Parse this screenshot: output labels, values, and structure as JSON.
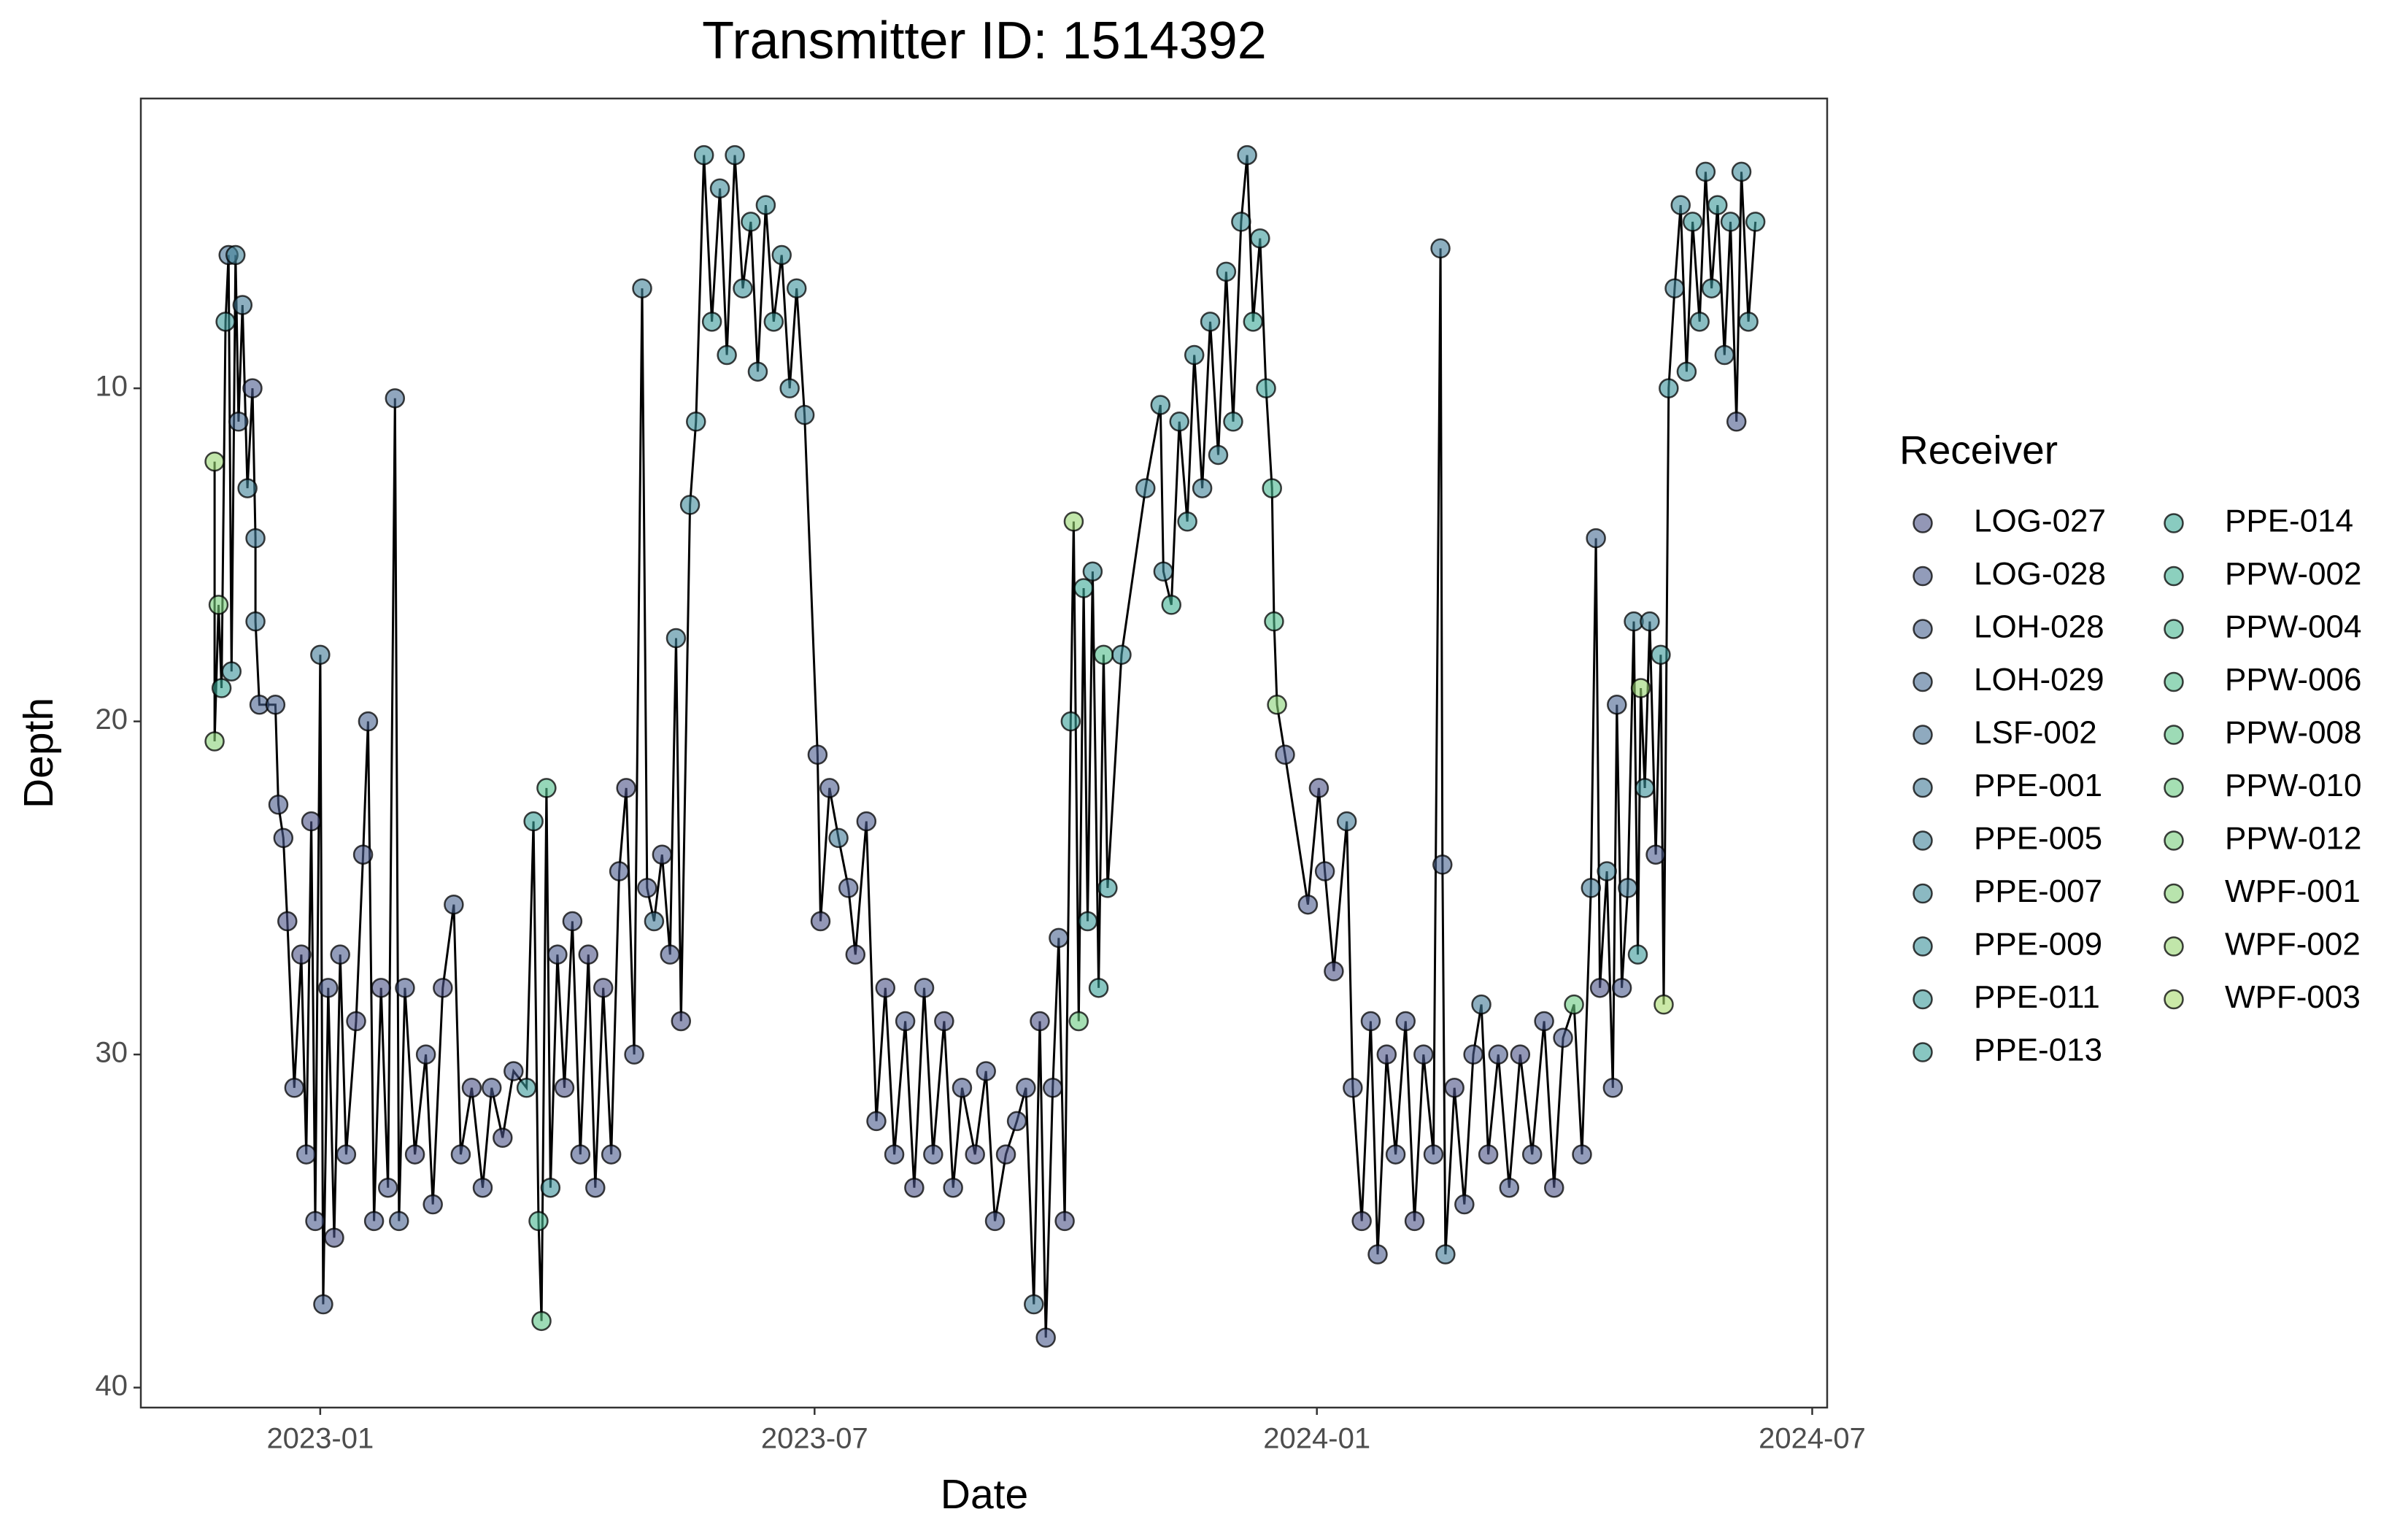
{
  "chart_data": {
    "type": "scatter",
    "title": "Transmitter ID: 1514392",
    "x_label": "Date",
    "y_label": "Depth",
    "legend_title": "Receiver",
    "connect_points": true,
    "line_color": "#000000",
    "y_reversed": true,
    "grid": false,
    "legend": "right",
    "xlim": [
      2022.82,
      2024.512
    ],
    "xticks": [
      {
        "value": 2023.0,
        "label": "2023-01"
      },
      {
        "value": 2023.496,
        "label": "2023-07"
      },
      {
        "value": 2024.0,
        "label": "2024-01"
      },
      {
        "value": 2024.497,
        "label": "2024-07"
      }
    ],
    "ylim": [
      1.3,
      40.6
    ],
    "yticks": [
      10,
      20,
      30,
      40
    ],
    "series": [
      {
        "name": "LOG-027",
        "color": "#4b5286"
      },
      {
        "name": "LOG-028",
        "color": "#4a5a8c"
      },
      {
        "name": "LOH-028",
        "color": "#48628f"
      },
      {
        "name": "LOH-029",
        "color": "#466a92"
      },
      {
        "name": "LSF-002",
        "color": "#447294"
      },
      {
        "name": "PPE-001",
        "color": "#417a96"
      },
      {
        "name": "PPE-005",
        "color": "#3f8298"
      },
      {
        "name": "PPE-007",
        "color": "#3d8a99"
      },
      {
        "name": "PPE-009",
        "color": "#3b9199"
      },
      {
        "name": "PPE-011",
        "color": "#3a9999"
      },
      {
        "name": "PPE-013",
        "color": "#39a098"
      },
      {
        "name": "PPE-014",
        "color": "#3ba896"
      },
      {
        "name": "PPW-002",
        "color": "#3fb093"
      },
      {
        "name": "PPW-004",
        "color": "#46b68f"
      },
      {
        "name": "PPW-006",
        "color": "#50bd8b"
      },
      {
        "name": "PPW-008",
        "color": "#5cc385"
      },
      {
        "name": "PPW-010",
        "color": "#69c980"
      },
      {
        "name": "PPW-012",
        "color": "#78ce7b"
      },
      {
        "name": "WPF-001",
        "color": "#88d276"
      },
      {
        "name": "WPF-002",
        "color": "#98d672"
      },
      {
        "name": "WPF-003",
        "color": "#a8da6e"
      }
    ],
    "x": [
      2022.894,
      2022.894,
      2022.898,
      2022.901,
      2022.905,
      2022.908,
      2022.911,
      2022.915,
      2022.918,
      2022.922,
      2022.927,
      2022.932,
      2022.935,
      2022.935,
      2022.939,
      2022.955,
      2022.958,
      2022.963,
      2022.967,
      2022.974,
      2022.981,
      2022.986,
      2022.991,
      2022.995,
      2023.0,
      2023.003,
      2023.008,
      2023.014,
      2023.02,
      2023.026,
      2023.036,
      2023.043,
      2023.048,
      2023.054,
      2023.061,
      2023.068,
      2023.075,
      2023.079,
      2023.085,
      2023.095,
      2023.106,
      2023.113,
      2023.123,
      2023.134,
      2023.141,
      2023.152,
      2023.163,
      2023.172,
      2023.183,
      2023.194,
      2023.207,
      2023.214,
      2023.219,
      2023.222,
      2023.227,
      2023.231,
      2023.238,
      2023.245,
      2023.253,
      2023.261,
      2023.269,
      2023.276,
      2023.284,
      2023.292,
      2023.3,
      2023.307,
      2023.315,
      2023.323,
      2023.328,
      2023.335,
      2023.343,
      2023.351,
      2023.357,
      2023.362,
      2023.371,
      2023.377,
      2023.385,
      2023.393,
      2023.401,
      2023.408,
      2023.416,
      2023.424,
      2023.432,
      2023.439,
      2023.447,
      2023.455,
      2023.463,
      2023.471,
      2023.478,
      2023.486,
      2023.499,
      2023.502,
      2023.511,
      2023.52,
      2023.53,
      2023.537,
      2023.548,
      2023.558,
      2023.567,
      2023.576,
      2023.587,
      2023.596,
      2023.606,
      2023.615,
      2023.626,
      2023.635,
      2023.644,
      2023.657,
      2023.668,
      2023.677,
      2023.688,
      2023.699,
      2023.708,
      2023.716,
      2023.722,
      2023.728,
      2023.735,
      2023.741,
      2023.747,
      2023.753,
      2023.756,
      2023.761,
      2023.766,
      2023.77,
      2023.775,
      2023.781,
      2023.786,
      2023.79,
      2023.804,
      2023.828,
      2023.843,
      2023.846,
      2023.854,
      2023.862,
      2023.87,
      2023.877,
      2023.885,
      2023.893,
      2023.901,
      2023.909,
      2023.916,
      2023.924,
      2023.93,
      2023.936,
      2023.943,
      2023.949,
      2023.955,
      2023.957,
      2023.96,
      2023.968,
      2023.991,
      2024.002,
      2024.008,
      2024.017,
      2024.03,
      2024.036,
      2024.045,
      2024.054,
      2024.061,
      2024.07,
      2024.079,
      2024.089,
      2024.098,
      2024.107,
      2024.117,
      2024.124,
      2024.126,
      2024.129,
      2024.138,
      2024.148,
      2024.157,
      2024.165,
      2024.172,
      2024.182,
      2024.193,
      2024.204,
      2024.216,
      2024.228,
      2024.238,
      2024.247,
      2024.258,
      2024.266,
      2024.275,
      2024.28,
      2024.284,
      2024.291,
      2024.297,
      2024.301,
      2024.306,
      2024.312,
      2024.318,
      2024.322,
      2024.325,
      2024.329,
      2024.334,
      2024.34,
      2024.345,
      2024.348,
      2024.353,
      2024.359,
      2024.365,
      2024.371,
      2024.377,
      2024.384,
      2024.39,
      2024.396,
      2024.402,
      2024.409,
      2024.415,
      2024.421,
      2024.426,
      2024.433,
      2024.44
    ],
    "values": [
      12.2,
      20.6,
      16.5,
      19,
      8,
      6,
      18.5,
      6,
      11,
      7.5,
      13,
      10,
      14.5,
      17,
      19.5,
      19.5,
      22.5,
      23.5,
      26,
      31,
      27,
      33,
      23,
      35,
      18,
      37.5,
      28,
      35.5,
      27,
      33,
      29,
      24,
      20,
      35,
      28,
      34,
      10.3,
      35,
      28,
      33,
      30,
      34.5,
      28,
      25.5,
      33,
      31,
      34,
      31,
      32.5,
      30.5,
      31,
      23,
      35,
      38,
      22,
      34,
      27,
      31,
      26,
      33,
      27,
      34,
      28,
      33,
      24.5,
      22,
      30,
      7,
      25,
      26,
      24,
      27,
      17.5,
      29,
      13.5,
      11,
      3,
      8,
      4,
      9,
      3,
      7,
      5,
      9.5,
      4.5,
      8,
      6,
      10,
      7,
      10.8,
      21,
      26,
      22,
      23.5,
      25,
      27,
      23,
      32,
      28,
      33,
      29,
      34,
      28,
      33,
      29,
      34,
      31,
      33,
      30.5,
      35,
      33,
      32,
      31,
      37.5,
      29,
      38.5,
      31,
      26.5,
      35,
      20,
      14,
      29,
      16,
      26,
      15.5,
      28,
      18,
      25,
      18,
      13,
      10.5,
      15.5,
      16.5,
      11,
      14,
      9,
      13,
      8,
      12,
      6.5,
      11,
      5,
      3,
      8,
      5.5,
      10,
      13,
      17,
      19.5,
      21,
      25.5,
      22,
      24.5,
      27.5,
      23,
      31,
      35,
      29,
      36,
      30,
      33,
      29,
      35,
      30,
      33,
      5.8,
      24.3,
      36,
      31,
      34.5,
      30,
      28.5,
      33,
      30,
      34,
      30,
      33,
      29,
      34,
      29.5,
      28.5,
      33,
      25,
      14.5,
      28,
      24.5,
      31,
      19.5,
      28,
      25,
      17,
      27,
      19,
      22,
      17,
      24,
      18,
      28.5,
      10,
      7,
      4.5,
      9.5,
      5,
      8,
      3.5,
      7,
      4.5,
      9,
      5,
      11,
      3.5,
      8,
      5
    ],
    "receiver": [
      "WPF-002",
      "WPF-001",
      "PPW-012",
      "PPE-014",
      "PPE-011",
      "LSF-002",
      "PPE-009",
      "PPE-005",
      "LOH-029",
      "PPE-001",
      "PPE-005",
      "LOG-028",
      "PPE-001",
      "PPE-001",
      "LOH-028",
      "LOH-028",
      "LOG-028",
      "LOG-028",
      "LOG-027",
      "LOG-028",
      "LOG-027",
      "LOG-028",
      "LOG-027",
      "LOG-028",
      "PPE-001",
      "LOH-028",
      "LOG-028",
      "LOG-027",
      "LOG-028",
      "LOG-028",
      "LOG-027",
      "LOG-028",
      "LOH-028",
      "LOG-028",
      "LOG-027",
      "LOG-028",
      "LOH-029",
      "LOH-028",
      "LOG-028",
      "LOG-027",
      "LOG-028",
      "LOG-028",
      "LOG-027",
      "LOH-028",
      "LOG-028",
      "LOG-027",
      "LOG-028",
      "LOG-028",
      "LOG-027",
      "LOG-028",
      "PPE-011",
      "PPE-013",
      "PPW-004",
      "PPW-008",
      "PPW-006",
      "PPE-009",
      "LOG-028",
      "LOG-027",
      "LOG-028",
      "LOG-028",
      "LOG-027",
      "LOG-028",
      "LOG-027",
      "LOG-028",
      "LOG-028",
      "LOG-027",
      "LOG-028",
      "PPE-005",
      "LOG-028",
      "PPE-001",
      "LOG-028",
      "LOG-028",
      "PPE-005",
      "LOG-027",
      "PPE-007",
      "PPE-009",
      "PPE-009",
      "PPE-011",
      "PPE-007",
      "PPE-009",
      "PPE-007",
      "PPE-009",
      "PPE-011",
      "PPE-007",
      "PPE-009",
      "PPE-011",
      "PPE-009",
      "PPE-007",
      "PPE-009",
      "PPE-005",
      "LOG-028",
      "LOG-027",
      "LOG-028",
      "PPE-001",
      "LOG-028",
      "LOG-027",
      "LOG-028",
      "LOG-028",
      "LOG-027",
      "LOG-028",
      "LOG-028",
      "LOG-027",
      "LOG-028",
      "LOG-028",
      "LOG-027",
      "LOG-028",
      "LOG-028",
      "LOG-027",
      "LOG-028",
      "LOG-028",
      "LOG-027",
      "LOG-028",
      "LOG-028",
      "PPE-001",
      "LOG-027",
      "LOG-028",
      "LOG-028",
      "LOH-028",
      "LOG-027",
      "PPE-013",
      "WPF-002",
      "PPW-010",
      "PPE-014",
      "PPE-011",
      "PPE-009",
      "PPE-013",
      "PPW-006",
      "PPE-011",
      "PPE-009",
      "PPE-005",
      "PPE-009",
      "PPE-007",
      "PPW-002",
      "PPE-009",
      "PPE-011",
      "PPE-009",
      "PPE-005",
      "PPE-009",
      "PPE-007",
      "PPE-009",
      "PPE-011",
      "PPE-009",
      "PPE-005",
      "PPE-014",
      "PPE-011",
      "PPE-013",
      "PPW-004",
      "PPW-006",
      "WPF-001",
      "LOG-028",
      "LOG-028",
      "LOG-027",
      "LOG-028",
      "LOG-027",
      "PPE-001",
      "LOG-028",
      "LOG-027",
      "LOG-028",
      "LOG-028",
      "LOG-027",
      "LOG-028",
      "LOG-028",
      "LOG-027",
      "LOG-028",
      "LOG-028",
      "PPE-001",
      "LOH-028",
      "PPE-001",
      "LOG-027",
      "LOG-028",
      "LOG-028",
      "PPE-001",
      "LOG-027",
      "LOG-028",
      "LOG-028",
      "LOG-027",
      "LOG-028",
      "LOG-028",
      "LOG-027",
      "LOG-028",
      "PPW-010",
      "LOG-028",
      "PPE-001",
      "LOH-029",
      "LOG-027",
      "PPE-005",
      "LOG-028",
      "LOH-028",
      "LOG-028",
      "PPE-001",
      "PPE-005",
      "PPE-011",
      "WPF-002",
      "PPE-009",
      "PPE-005",
      "LOG-028",
      "PPE-011",
      "WPF-003",
      "PPE-009",
      "PPE-005",
      "PPE-007",
      "PPE-009",
      "PPE-011",
      "PPE-009",
      "PPE-007",
      "PPE-009",
      "PPE-011",
      "PPE-005",
      "PPE-009",
      "LOG-028",
      "PPE-007",
      "PPE-009",
      "PPE-011"
    ]
  }
}
